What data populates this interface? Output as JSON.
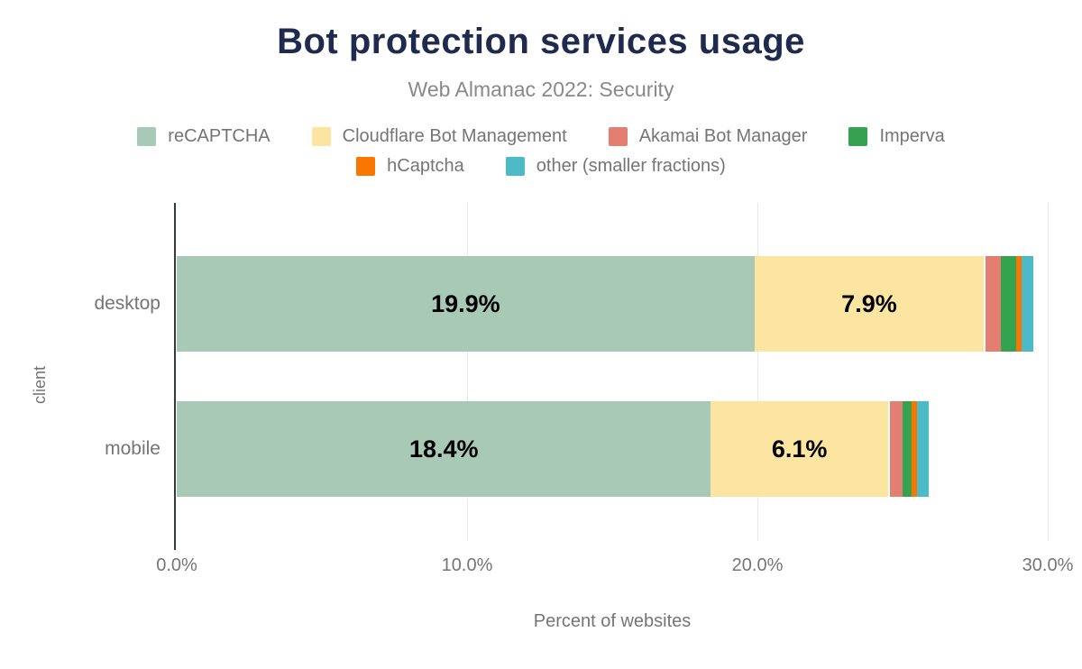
{
  "chart_data": {
    "type": "bar",
    "orientation": "horizontal",
    "stacked": true,
    "title": "Bot protection services usage",
    "subtitle": "Web Almanac 2022: Security",
    "xlabel": "Percent of websites",
    "ylabel": "client",
    "xlim": [
      0,
      30
    ],
    "xticks": [
      {
        "value": 0,
        "label": "0.0%"
      },
      {
        "value": 10,
        "label": "10.0%"
      },
      {
        "value": 20,
        "label": "20.0%"
      },
      {
        "value": 30,
        "label": "30.0%"
      }
    ],
    "grid": true,
    "legend_position": "top",
    "legend_rows": [
      4,
      2
    ],
    "categories": [
      "desktop",
      "mobile"
    ],
    "series": [
      {
        "name": "reCAPTCHA",
        "color": "#a7c9b5",
        "values": [
          19.9,
          18.4
        ],
        "data_labels": [
          "19.9%",
          "18.4%"
        ]
      },
      {
        "name": "Cloudflare Bot Management",
        "color": "#fce5a0",
        "values": [
          7.9,
          6.1
        ],
        "data_labels": [
          "7.9%",
          "6.1%"
        ]
      },
      {
        "name": "Akamai Bot Manager",
        "color": "#e57e72",
        "values": [
          0.6,
          0.5
        ]
      },
      {
        "name": "Imperva",
        "color": "#34a24f",
        "values": [
          0.5,
          0.3
        ]
      },
      {
        "name": "hCaptcha",
        "color": "#f97602",
        "values": [
          0.2,
          0.2
        ]
      },
      {
        "name": "other (smaller fractions)",
        "color": "#4cbac7",
        "values": [
          0.4,
          0.4
        ]
      }
    ],
    "colors": {
      "title": "#1e2b4e",
      "subtitle": "#898989",
      "text": "#757575",
      "axis_line": "#333b3f",
      "gridline": "#e8e8e8",
      "value_label": "#000000",
      "background": "#ffffff"
    }
  }
}
